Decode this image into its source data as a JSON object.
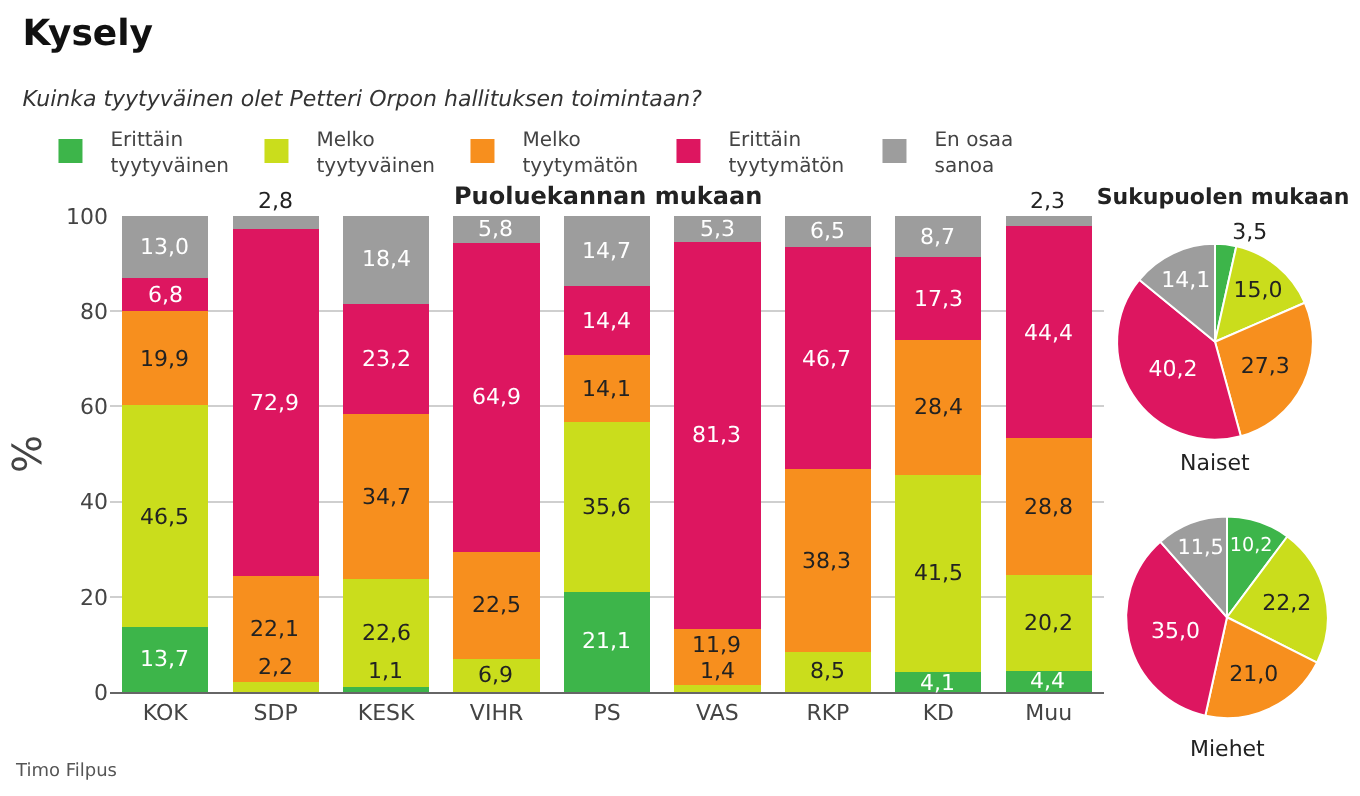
{
  "chart_data": [
    {
      "type": "bar",
      "title": "Kysely",
      "subtitle": "Kuinka tyytyväinen olet Petteri Orpon hallituksen toimintaan?",
      "ylabel": "%",
      "annotations": [
        "Puoluekannan mukaan",
        "Timo Filpus"
      ],
      "categories": [
        "KOK",
        "SDP",
        "KESK",
        "VIHR",
        "PS",
        "VAS",
        "RKP",
        "KD",
        "Muu"
      ],
      "stacked": true,
      "ylim": [
        0,
        100
      ],
      "yticks": [
        0,
        20,
        40,
        60,
        80,
        100
      ],
      "grid": "y",
      "legend": "top",
      "series": [
        {
          "name": "Erittäin tyytyväinen",
          "color": "#3db54a",
          "values": [
            13.7,
            null,
            1.1,
            null,
            21.1,
            null,
            null,
            4.1,
            4.4
          ],
          "value_labels": [
            "13,7",
            null,
            "1,1",
            null,
            "21,1",
            null,
            null,
            "4,1",
            "4,4"
          ]
        },
        {
          "name": "Melko tyytyväinen",
          "color": "#cadd1c",
          "values": [
            46.5,
            2.2,
            22.6,
            6.9,
            35.6,
            1.4,
            8.5,
            41.5,
            20.2
          ],
          "value_labels": [
            "46,5",
            "2,2",
            "22,6",
            "6,9",
            "35,6",
            "1,4",
            "8,5",
            "41,5",
            "20,2"
          ]
        },
        {
          "name": "Melko tyytymätön",
          "color": "#f78f1e",
          "values": [
            19.9,
            22.1,
            34.7,
            22.5,
            14.1,
            11.9,
            38.3,
            28.4,
            28.8
          ],
          "value_labels": [
            "19,9",
            "22,1",
            "34,7",
            "22,5",
            "14,1",
            "11,9",
            "38,3",
            "28,4",
            "28,8"
          ]
        },
        {
          "name": "Erittäin tyytymätön",
          "color": "#dd1660",
          "values": [
            6.8,
            72.9,
            23.2,
            64.9,
            14.4,
            81.3,
            46.7,
            17.3,
            44.4
          ],
          "value_labels": [
            "6,8",
            "72,9",
            "23,2",
            "64,9",
            "14,4",
            "81,3",
            "46,7",
            "17,3",
            "44,4"
          ]
        },
        {
          "name": "En osaa sanoa",
          "color": "#9d9d9d",
          "values": [
            13.0,
            2.8,
            18.4,
            5.8,
            14.7,
            5.3,
            6.5,
            8.7,
            2.3
          ],
          "value_labels": [
            "13,0",
            "2,8",
            "18,4",
            "5,8",
            "14,7",
            "5,3",
            "6,5",
            "8,7",
            "2,3"
          ]
        }
      ]
    },
    {
      "type": "pie",
      "title": "Sukupuolen mukaan",
      "subtitle": "Naiset",
      "categories": [
        null,
        null,
        null,
        null,
        null
      ],
      "values": [
        3.5,
        15.0,
        27.3,
        40.2,
        14.1
      ],
      "value_labels": [
        "3,5",
        "15,0",
        "27,3",
        "40,2",
        "14,1"
      ],
      "colors": [
        "#3db54a",
        "#cadd1c",
        "#f78f1e",
        "#dd1660",
        "#9d9d9d"
      ]
    },
    {
      "type": "pie",
      "subtitle": "Miehet",
      "categories": [
        null,
        null,
        null,
        null,
        null
      ],
      "values": [
        10.2,
        22.2,
        21.0,
        35.0,
        11.5
      ],
      "value_labels": [
        "10,2",
        "22,2",
        "21,0",
        "35,0",
        "11,5"
      ],
      "colors": [
        "#3db54a",
        "#cadd1c",
        "#f78f1e",
        "#dd1660",
        "#9d9d9d"
      ]
    }
  ]
}
